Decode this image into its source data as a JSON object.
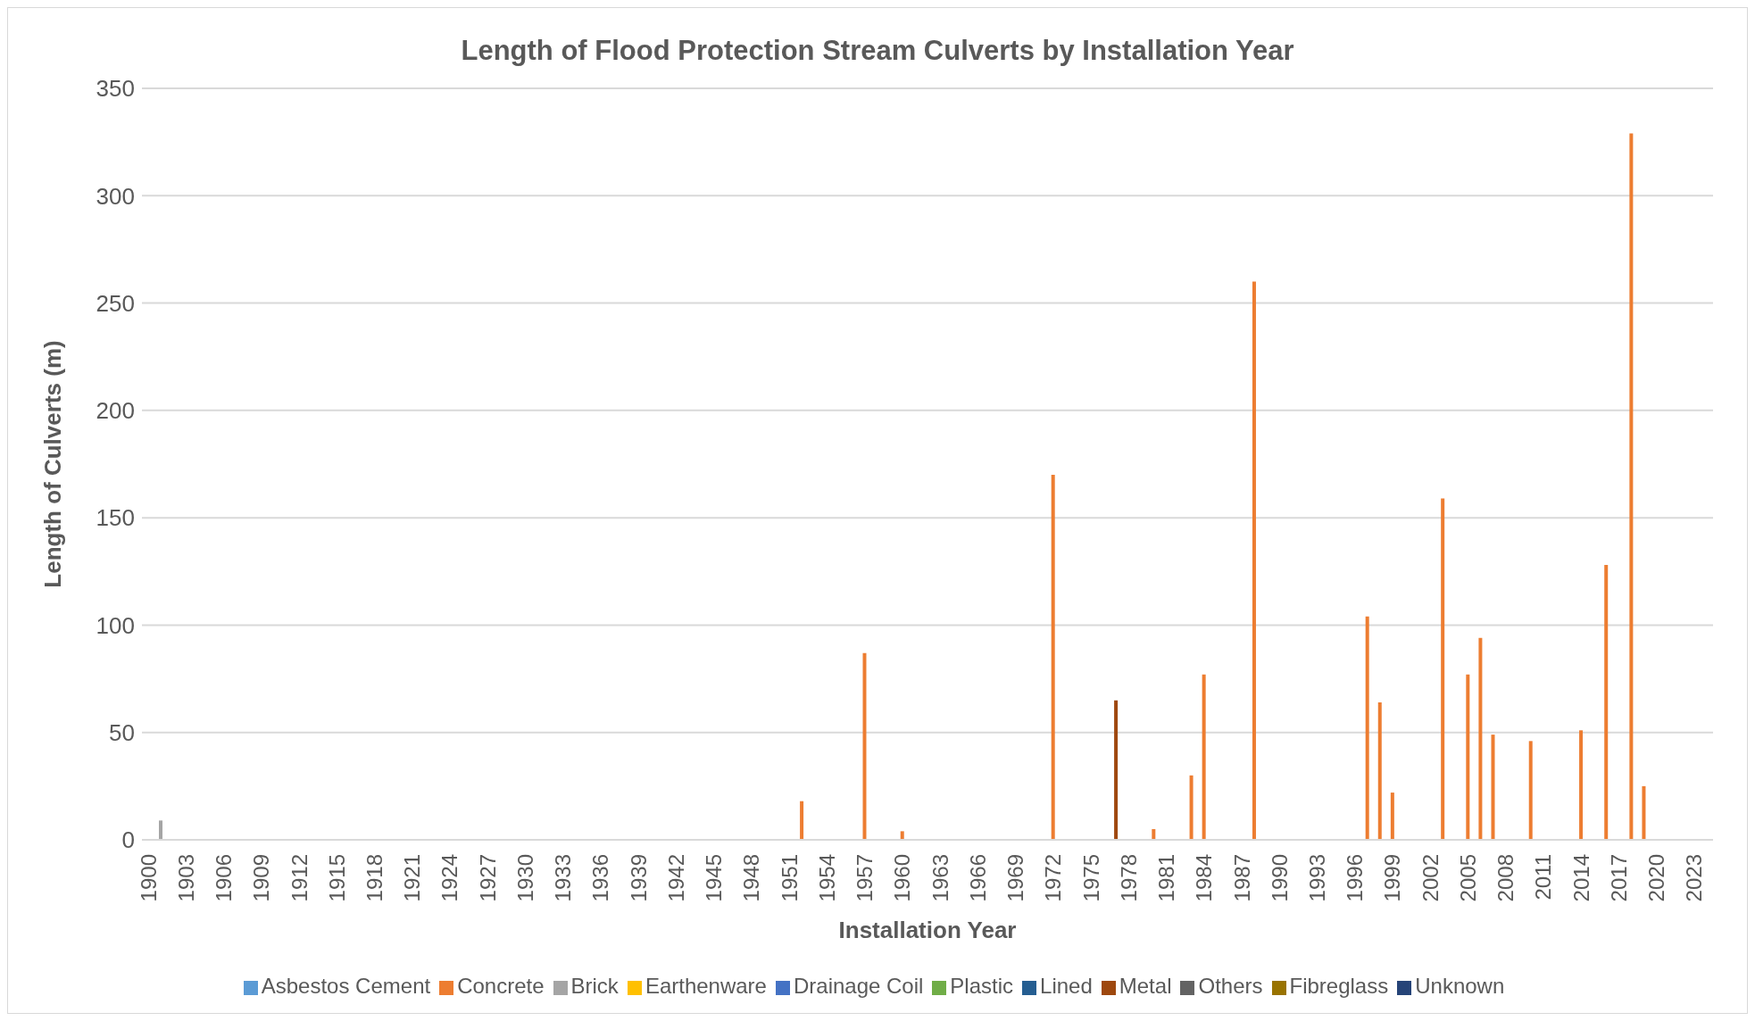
{
  "chart_data": {
    "type": "bar",
    "title": "Length of Flood Protection Stream Culverts by Installation Year",
    "xlabel": "Installation Year",
    "ylabel": "Length of Culverts (m)",
    "categories": [
      "1900",
      null,
      null,
      "1903",
      null,
      null,
      "1906",
      null,
      null,
      "1909",
      null,
      null,
      "1912",
      null,
      null,
      "1915",
      null,
      null,
      "1918",
      null,
      null,
      "1921",
      null,
      null,
      "1924",
      null,
      null,
      "1927",
      null,
      null,
      "1930",
      null,
      null,
      "1933",
      null,
      null,
      "1936",
      null,
      null,
      "1939",
      null,
      null,
      "1942",
      null,
      null,
      "1945",
      null,
      null,
      "1948",
      null,
      null,
      "1951",
      null,
      null,
      "1954",
      null,
      null,
      "1957",
      null,
      null,
      "1960",
      null,
      null,
      "1963",
      null,
      null,
      "1966",
      null,
      null,
      "1969",
      null,
      null,
      "1972",
      null,
      null,
      "1975",
      null,
      null,
      "1978",
      null,
      null,
      "1981",
      null,
      null,
      "1984",
      null,
      null,
      "1987",
      null,
      null,
      "1990",
      null,
      null,
      "1993",
      null,
      null,
      "1996",
      null,
      null,
      "1999",
      null,
      null,
      "2002",
      null,
      null,
      "2005",
      null,
      null,
      "2008",
      null,
      null,
      "2011",
      null,
      null,
      "2014",
      null,
      null,
      "2017",
      null,
      null,
      "2020",
      null,
      null,
      "2023",
      null
    ],
    "stacked": true,
    "ylim": [
      0,
      350
    ],
    "yticks": [
      0,
      50,
      100,
      150,
      200,
      250,
      300,
      350
    ],
    "grid": "y",
    "legend": "bottom",
    "series": [
      {
        "name": "Asbestos Cement",
        "color": "#5b9bd5",
        "values": [
          null,
          null,
          null,
          null,
          null,
          null,
          null,
          null,
          null,
          null,
          null,
          null,
          null,
          null,
          null,
          null,
          null,
          null,
          null,
          null,
          null,
          null,
          null,
          null,
          null,
          null,
          null,
          null,
          null,
          null,
          null,
          null,
          null,
          null,
          null,
          null,
          null,
          null,
          null,
          null,
          null,
          null,
          null,
          null,
          null,
          null,
          null,
          null,
          null,
          null,
          null,
          null,
          null,
          null,
          null,
          null,
          null,
          null,
          null,
          null,
          null,
          null,
          null,
          null,
          null,
          null,
          null,
          null,
          null,
          null,
          null,
          null,
          null,
          null,
          null,
          null,
          null,
          null,
          null,
          null,
          null,
          null,
          null,
          null,
          null,
          null,
          null,
          null,
          null,
          null,
          null,
          null,
          null,
          null,
          null,
          null,
          null,
          null,
          null,
          null,
          null,
          null,
          null,
          null,
          null,
          null,
          null,
          null,
          null,
          null,
          null,
          null,
          null,
          null,
          null,
          null,
          null,
          null,
          null,
          null,
          null,
          null,
          null,
          null,
          null
        ]
      },
      {
        "name": "Concrete",
        "color": "#ed7d31",
        "values": [
          null,
          null,
          null,
          null,
          null,
          null,
          null,
          null,
          null,
          null,
          null,
          null,
          null,
          null,
          null,
          null,
          null,
          null,
          null,
          null,
          null,
          null,
          null,
          null,
          null,
          null,
          null,
          null,
          null,
          null,
          null,
          null,
          null,
          null,
          null,
          null,
          null,
          null,
          null,
          null,
          null,
          null,
          null,
          null,
          null,
          null,
          null,
          null,
          null,
          null,
          null,
          null,
          18,
          null,
          null,
          null,
          null,
          87,
          null,
          null,
          4,
          null,
          null,
          null,
          null,
          null,
          null,
          null,
          null,
          null,
          null,
          null,
          170,
          null,
          null,
          null,
          null,
          null,
          null,
          null,
          5,
          null,
          null,
          30,
          77,
          null,
          null,
          null,
          260,
          null,
          null,
          null,
          null,
          null,
          null,
          null,
          null,
          104,
          64,
          22,
          null,
          null,
          null,
          159,
          null,
          77,
          94,
          49,
          null,
          null,
          46,
          null,
          null,
          null,
          51,
          null,
          128,
          null,
          329,
          25,
          null,
          null,
          null,
          null,
          null
        ]
      },
      {
        "name": "Brick",
        "color": "#a5a5a5",
        "values": [
          null,
          9,
          null,
          null,
          null,
          null,
          null,
          null,
          null,
          null,
          null,
          null,
          null,
          null,
          null,
          null,
          null,
          null,
          null,
          null,
          null,
          null,
          null,
          null,
          null,
          null,
          null,
          null,
          null,
          null,
          null,
          null,
          null,
          null,
          null,
          null,
          null,
          null,
          null,
          null,
          null,
          null,
          null,
          null,
          null,
          null,
          null,
          null,
          null,
          null,
          null,
          null,
          null,
          null,
          null,
          null,
          null,
          null,
          null,
          null,
          null,
          null,
          null,
          null,
          null,
          null,
          null,
          null,
          null,
          null,
          null,
          null,
          null,
          null,
          null,
          null,
          null,
          null,
          null,
          null,
          null,
          null,
          null,
          null,
          null,
          null,
          null,
          null,
          null,
          null,
          null,
          null,
          null,
          null,
          null,
          null,
          null,
          null,
          null,
          null,
          null,
          null,
          null,
          null,
          null,
          null,
          null,
          null,
          null,
          null,
          null,
          null,
          null,
          null,
          null,
          null,
          null,
          null,
          null,
          null,
          null,
          null,
          null,
          null,
          null
        ]
      },
      {
        "name": "Earthenware",
        "color": "#ffc000",
        "values": [
          null,
          null,
          null,
          null,
          null,
          null,
          null,
          null,
          null,
          null,
          null,
          null,
          null,
          null,
          null,
          null,
          null,
          null,
          null,
          null,
          null,
          null,
          null,
          null,
          null,
          null,
          null,
          null,
          null,
          null,
          null,
          null,
          null,
          null,
          null,
          null,
          null,
          null,
          null,
          null,
          null,
          null,
          null,
          null,
          null,
          null,
          null,
          null,
          null,
          null,
          null,
          null,
          null,
          null,
          null,
          null,
          null,
          null,
          null,
          null,
          null,
          null,
          null,
          null,
          null,
          null,
          null,
          null,
          null,
          null,
          null,
          null,
          null,
          null,
          null,
          null,
          null,
          null,
          null,
          null,
          null,
          null,
          null,
          null,
          null,
          null,
          null,
          null,
          null,
          null,
          null,
          null,
          null,
          null,
          null,
          null,
          null,
          null,
          null,
          null,
          null,
          null,
          null,
          null,
          null,
          null,
          null,
          null,
          null,
          null,
          null,
          null,
          null,
          null,
          null,
          null,
          null,
          null,
          null,
          null,
          null,
          null,
          null,
          null,
          null
        ]
      },
      {
        "name": "Drainage Coil",
        "color": "#4472c4",
        "values": [
          null,
          null,
          null,
          null,
          null,
          null,
          null,
          null,
          null,
          null,
          null,
          null,
          null,
          null,
          null,
          null,
          null,
          null,
          null,
          null,
          null,
          null,
          null,
          null,
          null,
          null,
          null,
          null,
          null,
          null,
          null,
          null,
          null,
          null,
          null,
          null,
          null,
          null,
          null,
          null,
          null,
          null,
          null,
          null,
          null,
          null,
          null,
          null,
          null,
          null,
          null,
          null,
          null,
          null,
          null,
          null,
          null,
          null,
          null,
          null,
          null,
          null,
          null,
          null,
          null,
          null,
          null,
          null,
          null,
          null,
          null,
          null,
          null,
          null,
          null,
          null,
          null,
          null,
          null,
          null,
          null,
          null,
          null,
          null,
          null,
          null,
          null,
          null,
          null,
          null,
          null,
          null,
          null,
          null,
          null,
          null,
          null,
          null,
          null,
          null,
          null,
          null,
          null,
          null,
          null,
          null,
          null,
          null,
          null,
          null,
          null,
          null,
          null,
          null,
          null,
          null,
          null,
          null,
          null,
          null,
          null,
          null,
          null,
          null,
          null
        ]
      },
      {
        "name": "Plastic",
        "color": "#70ad47",
        "values": [
          null,
          null,
          null,
          null,
          null,
          null,
          null,
          null,
          null,
          null,
          null,
          null,
          null,
          null,
          null,
          null,
          null,
          null,
          null,
          null,
          null,
          null,
          null,
          null,
          null,
          null,
          null,
          null,
          null,
          null,
          null,
          null,
          null,
          null,
          null,
          null,
          null,
          null,
          null,
          null,
          null,
          null,
          null,
          null,
          null,
          null,
          null,
          null,
          null,
          null,
          null,
          null,
          null,
          null,
          null,
          null,
          null,
          null,
          null,
          null,
          null,
          null,
          null,
          null,
          null,
          null,
          null,
          null,
          null,
          null,
          null,
          null,
          null,
          null,
          null,
          null,
          null,
          null,
          null,
          null,
          null,
          null,
          null,
          null,
          null,
          null,
          null,
          null,
          null,
          null,
          null,
          null,
          null,
          null,
          null,
          null,
          null,
          null,
          null,
          null,
          null,
          null,
          null,
          null,
          null,
          null,
          null,
          null,
          null,
          null,
          null,
          null,
          null,
          null,
          null,
          null,
          null,
          null,
          null,
          null,
          null,
          null,
          null,
          null,
          null
        ]
      },
      {
        "name": "Lined",
        "color": "#255e91",
        "values": [
          null,
          null,
          null,
          null,
          null,
          null,
          null,
          null,
          null,
          null,
          null,
          null,
          null,
          null,
          null,
          null,
          null,
          null,
          null,
          null,
          null,
          null,
          null,
          null,
          null,
          null,
          null,
          null,
          null,
          null,
          null,
          null,
          null,
          null,
          null,
          null,
          null,
          null,
          null,
          null,
          null,
          null,
          null,
          null,
          null,
          null,
          null,
          null,
          null,
          null,
          null,
          null,
          null,
          null,
          null,
          null,
          null,
          null,
          null,
          null,
          null,
          null,
          null,
          null,
          null,
          null,
          null,
          null,
          null,
          null,
          null,
          null,
          null,
          null,
          null,
          null,
          null,
          null,
          null,
          null,
          null,
          null,
          null,
          null,
          null,
          null,
          null,
          null,
          null,
          null,
          null,
          null,
          null,
          null,
          null,
          null,
          null,
          null,
          null,
          null,
          null,
          null,
          null,
          null,
          null,
          null,
          null,
          null,
          null,
          null,
          null,
          null,
          null,
          null,
          null,
          null,
          null,
          null,
          null,
          null,
          null,
          null,
          null,
          null,
          null
        ]
      },
      {
        "name": "Metal",
        "color": "#9e480e",
        "values": [
          null,
          null,
          null,
          null,
          null,
          null,
          null,
          null,
          null,
          null,
          null,
          null,
          null,
          null,
          null,
          null,
          null,
          null,
          null,
          null,
          null,
          null,
          null,
          null,
          null,
          null,
          null,
          null,
          null,
          null,
          null,
          null,
          null,
          null,
          null,
          null,
          null,
          null,
          null,
          null,
          null,
          null,
          null,
          null,
          null,
          null,
          null,
          null,
          null,
          null,
          null,
          null,
          null,
          null,
          null,
          null,
          null,
          null,
          null,
          null,
          null,
          null,
          null,
          null,
          null,
          null,
          null,
          null,
          null,
          null,
          null,
          null,
          null,
          null,
          null,
          null,
          null,
          65,
          null,
          null,
          null,
          null,
          null,
          null,
          null,
          null,
          null,
          null,
          null,
          null,
          null,
          null,
          null,
          null,
          null,
          null,
          null,
          null,
          null,
          null,
          null,
          null,
          null,
          null,
          null,
          null,
          null,
          null,
          null,
          null,
          null,
          null,
          null,
          null,
          null,
          null,
          null,
          null,
          null,
          null,
          null,
          null,
          null,
          null,
          null
        ]
      },
      {
        "name": "Others",
        "color": "#636363",
        "values": [
          null,
          null,
          null,
          null,
          null,
          null,
          null,
          null,
          null,
          null,
          null,
          null,
          null,
          null,
          null,
          null,
          null,
          null,
          null,
          null,
          null,
          null,
          null,
          null,
          null,
          null,
          null,
          null,
          null,
          null,
          null,
          null,
          null,
          null,
          null,
          null,
          null,
          null,
          null,
          null,
          null,
          null,
          null,
          null,
          null,
          null,
          null,
          null,
          null,
          null,
          null,
          null,
          null,
          null,
          null,
          null,
          null,
          null,
          null,
          null,
          null,
          null,
          null,
          null,
          null,
          null,
          null,
          null,
          null,
          null,
          null,
          null,
          null,
          null,
          null,
          null,
          null,
          null,
          null,
          null,
          null,
          null,
          null,
          null,
          null,
          null,
          null,
          null,
          null,
          null,
          null,
          null,
          null,
          null,
          null,
          null,
          null,
          null,
          null,
          null,
          null,
          null,
          null,
          null,
          null,
          null,
          null,
          null,
          null,
          null,
          null,
          null,
          null,
          null,
          null,
          null,
          null,
          null,
          null,
          null,
          null,
          null,
          null,
          null,
          null
        ]
      },
      {
        "name": "Fibreglass",
        "color": "#997300",
        "values": [
          null,
          null,
          null,
          null,
          null,
          null,
          null,
          null,
          null,
          null,
          null,
          null,
          null,
          null,
          null,
          null,
          null,
          null,
          null,
          null,
          null,
          null,
          null,
          null,
          null,
          null,
          null,
          null,
          null,
          null,
          null,
          null,
          null,
          null,
          null,
          null,
          null,
          null,
          null,
          null,
          null,
          null,
          null,
          null,
          null,
          null,
          null,
          null,
          null,
          null,
          null,
          null,
          null,
          null,
          null,
          null,
          null,
          null,
          null,
          null,
          null,
          null,
          null,
          null,
          null,
          null,
          null,
          null,
          null,
          null,
          null,
          null,
          null,
          null,
          null,
          null,
          null,
          null,
          null,
          null,
          null,
          null,
          null,
          null,
          null,
          null,
          null,
          null,
          null,
          null,
          null,
          null,
          null,
          null,
          null,
          null,
          null,
          null,
          null,
          null,
          null,
          null,
          null,
          null,
          null,
          null,
          null,
          null,
          null,
          null,
          null,
          null,
          null,
          null,
          null,
          null,
          null,
          null,
          null,
          null,
          null,
          null,
          null,
          null,
          null
        ]
      },
      {
        "name": "Unknown",
        "color": "#264478",
        "values": [
          null,
          null,
          null,
          null,
          null,
          null,
          null,
          null,
          null,
          null,
          null,
          null,
          null,
          null,
          null,
          null,
          null,
          null,
          null,
          null,
          null,
          null,
          null,
          null,
          null,
          null,
          null,
          null,
          null,
          null,
          null,
          null,
          null,
          null,
          null,
          null,
          null,
          null,
          null,
          null,
          null,
          null,
          null,
          null,
          null,
          null,
          null,
          null,
          null,
          null,
          null,
          null,
          null,
          null,
          null,
          null,
          null,
          null,
          null,
          null,
          null,
          null,
          null,
          null,
          null,
          null,
          null,
          null,
          null,
          null,
          null,
          null,
          null,
          null,
          null,
          null,
          null,
          null,
          null,
          null,
          null,
          null,
          null,
          null,
          null,
          null,
          null,
          null,
          null,
          null,
          null,
          null,
          null,
          null,
          null,
          null,
          null,
          null,
          null,
          null,
          null,
          null,
          null,
          null,
          null,
          null,
          null,
          null,
          null,
          null,
          null,
          null,
          null,
          null,
          null,
          null,
          null,
          null,
          null,
          null,
          null,
          null,
          null,
          null,
          null
        ]
      }
    ]
  }
}
